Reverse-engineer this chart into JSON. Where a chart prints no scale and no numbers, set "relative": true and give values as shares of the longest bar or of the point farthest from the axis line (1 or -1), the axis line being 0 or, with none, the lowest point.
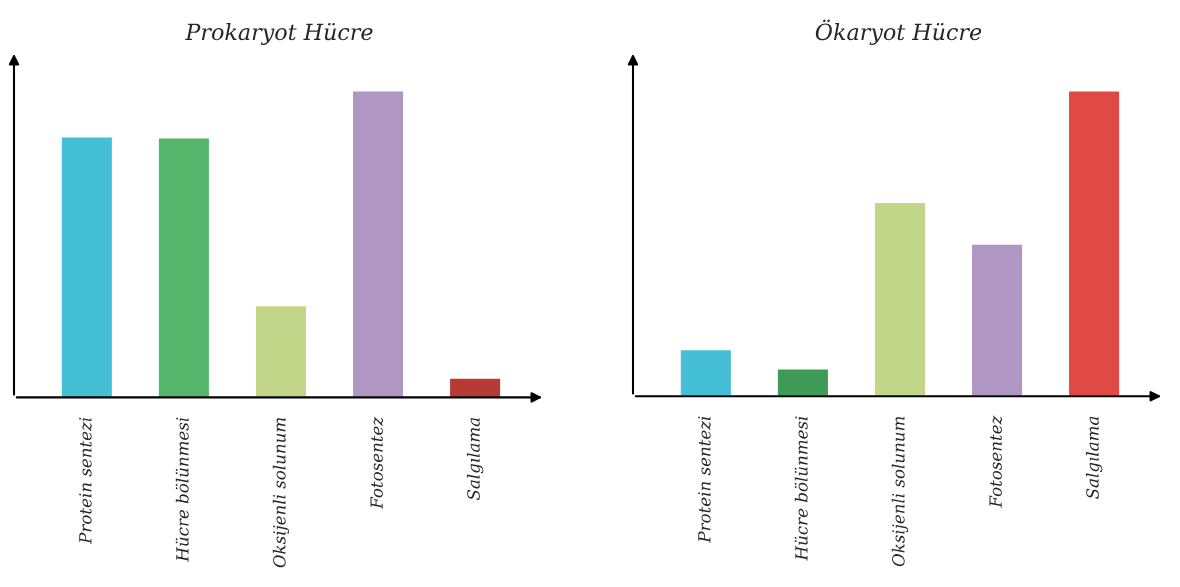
{
  "chart_data": [
    {
      "type": "bar",
      "title": "Prokaryot Hücre",
      "relative": true,
      "categories": [
        "Protein sentezi",
        "Hücre bölünmesi",
        "Oksijenli solunum",
        "Fotosentez",
        "Salgılama"
      ],
      "values": [
        0.85,
        0.847,
        0.3,
        1,
        0.063
      ],
      "colors": [
        "#45bfd6",
        "#55b56b",
        "#c2d68a",
        "#b096c2",
        "#b83a34"
      ],
      "grid": false,
      "legend": false
    },
    {
      "type": "bar",
      "title": "Ökaryot Hücre",
      "relative": true,
      "categories": [
        "Protein sentezi",
        "Hücre bölünmesi",
        "Oksijenli solunum",
        "Fotosentez",
        "Salgılama"
      ],
      "values": [
        0.153,
        0.09,
        0.635,
        0.498,
        1
      ],
      "colors": [
        "#45bfd6",
        "#3f9a55",
        "#c2d68a",
        "#b096c2",
        "#e04a44"
      ],
      "grid": false,
      "legend": false
    }
  ]
}
